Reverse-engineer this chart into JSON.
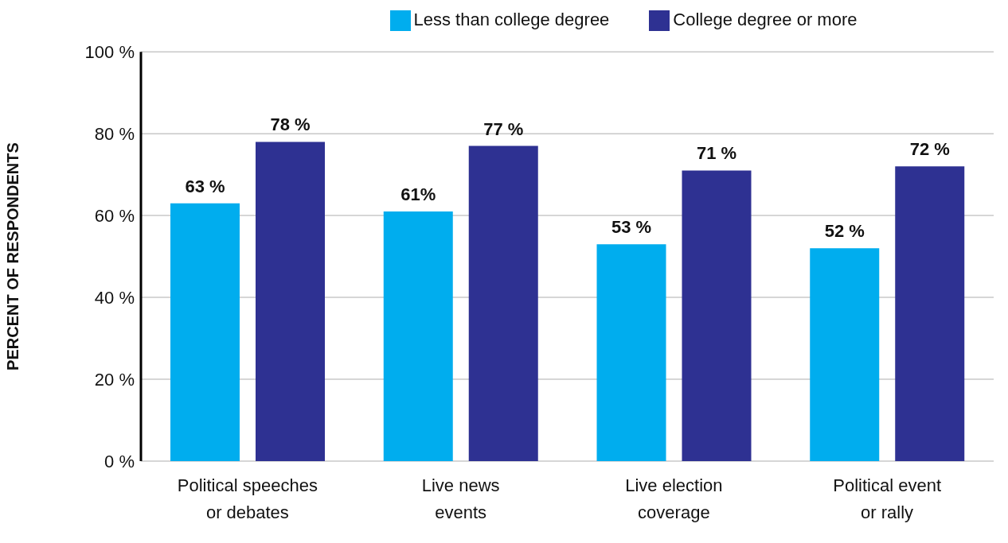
{
  "chart_data": {
    "type": "bar",
    "ylabel": "PERCENT OF RESPONDENTS",
    "categories": [
      "Political speeches or debates",
      "Live news events",
      "Live election coverage",
      "Political event or rally"
    ],
    "series": [
      {
        "name": "Less than college degree",
        "color": "#00adee",
        "values": [
          63,
          61,
          53,
          52
        ],
        "value_labels": [
          "63 %",
          "61%",
          "53 %",
          "52 %"
        ]
      },
      {
        "name": "College degree or more",
        "color": "#2e3192",
        "values": [
          78,
          77,
          71,
          72
        ],
        "value_labels": [
          "78 %",
          "77 %",
          "71 %",
          "72 %"
        ]
      }
    ],
    "ylim": [
      0,
      100
    ],
    "yticks": [
      {
        "value": 0,
        "label": "0 %"
      },
      {
        "value": 20,
        "label": "20 %"
      },
      {
        "value": 40,
        "label": "40 %"
      },
      {
        "value": 60,
        "label": "60 %"
      },
      {
        "value": 80,
        "label": "80 %"
      },
      {
        "value": 100,
        "label": "100 %"
      }
    ],
    "grid": "y",
    "legend": "top"
  }
}
